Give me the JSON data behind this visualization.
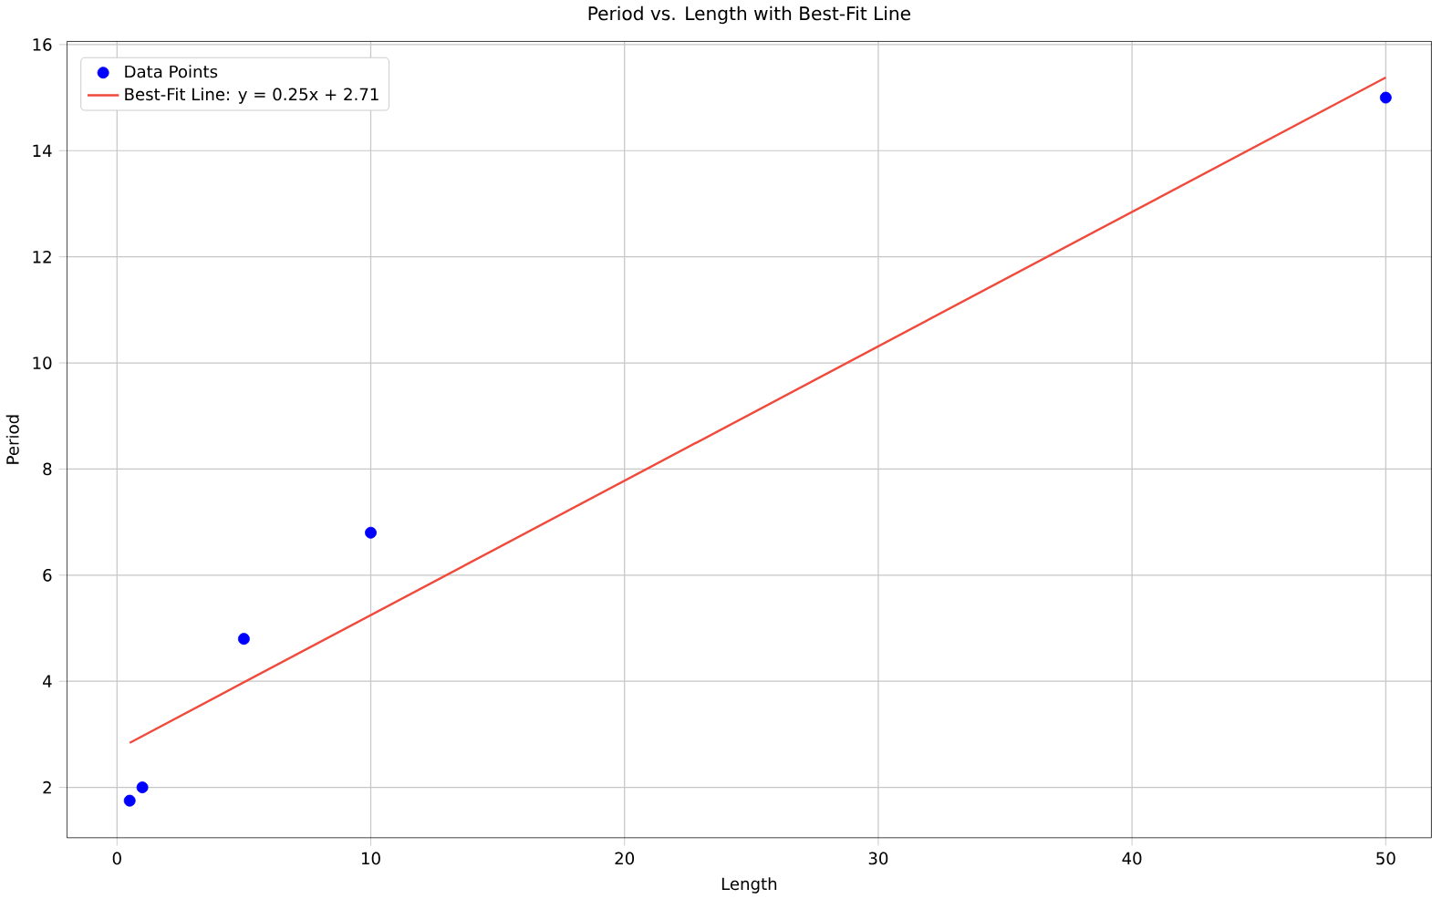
{
  "chart_data": {
    "type": "scatter",
    "title": "Period vs. Length with Best-Fit Line",
    "xlabel": "Length",
    "ylabel": "Period",
    "xlim": [
      -1.975,
      51.8
    ],
    "ylim": [
      1.05,
      16.06
    ],
    "xticks": [
      0,
      10,
      20,
      30,
      40,
      50
    ],
    "yticks": [
      2,
      4,
      6,
      8,
      10,
      12,
      14,
      16
    ],
    "grid": true,
    "legend": "top left",
    "series": [
      {
        "name": "Data Points",
        "marker": "circle",
        "color": "#0000ff",
        "x": [
          0.5,
          1,
          5,
          10,
          50
        ],
        "values": [
          1.75,
          2.0,
          4.8,
          6.8,
          15.0
        ]
      },
      {
        "name": "Best-Fit Line: y = 0.25x + 2.71",
        "type": "line",
        "color": "#f04a3c",
        "line_style": "solid",
        "x": [
          0.5,
          50
        ],
        "values": [
          2.84,
          15.38
        ]
      }
    ]
  }
}
